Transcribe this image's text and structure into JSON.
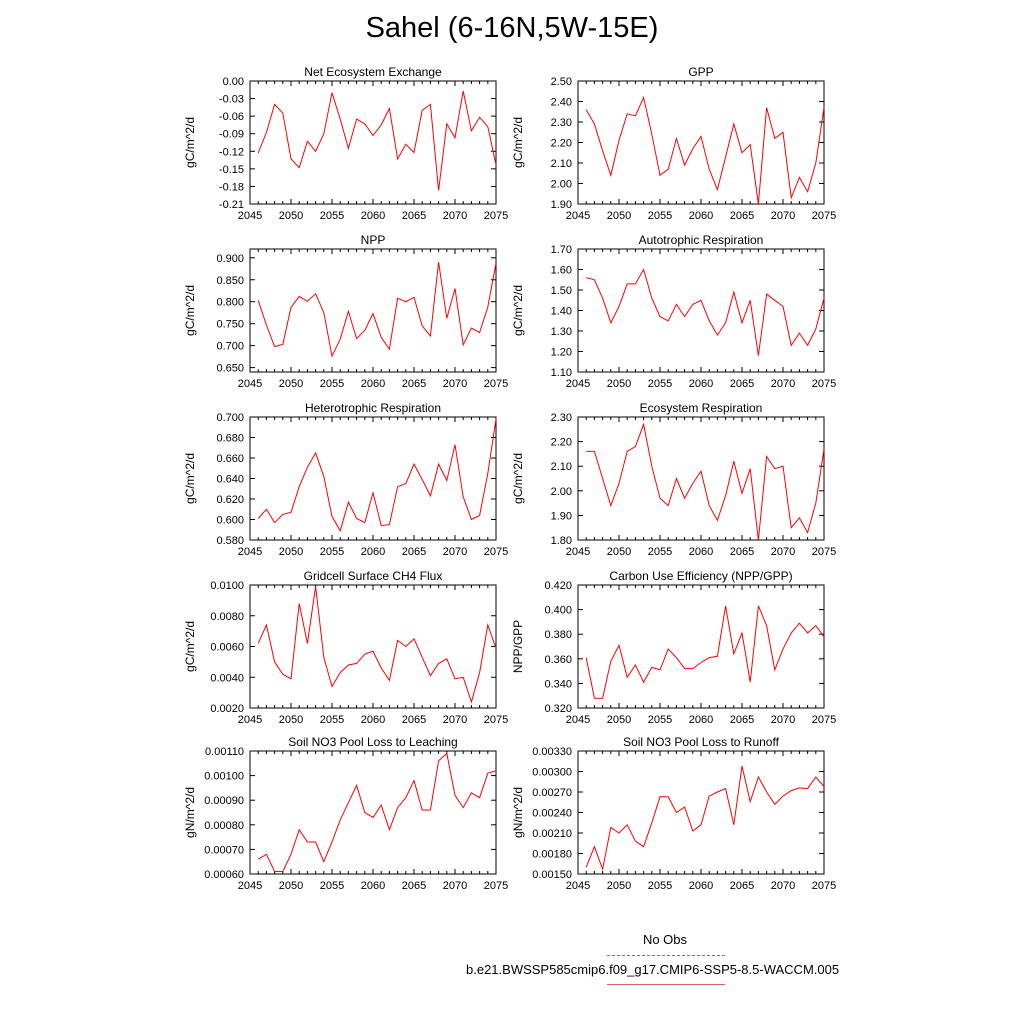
{
  "figure": {
    "title": "Sahel (6-16N,5W-15E)",
    "legend": {
      "obs_label": "No Obs",
      "model_label": "b.e21.BWSSP585cmip6.f09_g17.CMIP6-SSP5-8.5-WACCM.005",
      "obs_color": "#6a6ad0",
      "model_color": "#e06060"
    }
  },
  "chart_data": [
    {
      "type": "line",
      "title": "Net Ecosystem Exchange",
      "ylabel": "gC/m^2/d",
      "xlim": [
        2045,
        2075
      ],
      "ylim": [
        -0.21,
        0.0
      ],
      "xticks": [
        "2045",
        "2050",
        "2055",
        "2060",
        "2065",
        "2070",
        "2075"
      ],
      "yticks": [
        "-0.21",
        "-0.18",
        "-0.15",
        "-0.12",
        "-0.09",
        "-0.06",
        "-0.03",
        "0.00"
      ],
      "x": [
        2046,
        2047,
        2048,
        2049,
        2050,
        2051,
        2052,
        2053,
        2054,
        2055,
        2056,
        2057,
        2058,
        2059,
        2060,
        2061,
        2062,
        2063,
        2064,
        2065,
        2066,
        2067,
        2068,
        2069,
        2070,
        2071,
        2072,
        2073,
        2074,
        2075
      ],
      "series": [
        {
          "name": "b.e21.BWSSP585cmip6.f09_g17.CMIP6-SSP5-8.5-WACCM.005",
          "color": "#ff0000",
          "values": [
            -0.123,
            -0.088,
            -0.04,
            -0.055,
            -0.133,
            -0.148,
            -0.103,
            -0.12,
            -0.09,
            -0.02,
            -0.065,
            -0.115,
            -0.065,
            -0.073,
            -0.093,
            -0.075,
            -0.047,
            -0.133,
            -0.108,
            -0.122,
            -0.05,
            -0.04,
            -0.187,
            -0.073,
            -0.097,
            -0.017,
            -0.085,
            -0.062,
            -0.078,
            -0.143
          ]
        }
      ]
    },
    {
      "type": "line",
      "title": "GPP",
      "ylabel": "gC/m^2/d",
      "xlim": [
        2045,
        2075
      ],
      "ylim": [
        1.9,
        2.5
      ],
      "xticks": [
        "2045",
        "2050",
        "2055",
        "2060",
        "2065",
        "2070",
        "2075"
      ],
      "yticks": [
        "1.90",
        "2.00",
        "2.10",
        "2.20",
        "2.30",
        "2.40",
        "2.50"
      ],
      "x": [
        2046,
        2047,
        2048,
        2049,
        2050,
        2051,
        2052,
        2053,
        2054,
        2055,
        2056,
        2057,
        2058,
        2059,
        2060,
        2061,
        2062,
        2063,
        2064,
        2065,
        2066,
        2067,
        2068,
        2069,
        2070,
        2071,
        2072,
        2073,
        2074,
        2075
      ],
      "series": [
        {
          "name": "b.e21.BWSSP585cmip6.f09_g17.CMIP6-SSP5-8.5-WACCM.005",
          "color": "#ff0000",
          "values": [
            2.36,
            2.29,
            2.16,
            2.04,
            2.21,
            2.34,
            2.33,
            2.42,
            2.24,
            2.04,
            2.07,
            2.22,
            2.09,
            2.17,
            2.23,
            2.07,
            1.97,
            2.13,
            2.29,
            2.15,
            2.19,
            1.9,
            2.37,
            2.22,
            2.25,
            1.93,
            2.03,
            1.96,
            2.1,
            2.37
          ]
        }
      ]
    },
    {
      "type": "line",
      "title": "NPP",
      "ylabel": "gC/m^2/d",
      "xlim": [
        2045,
        2075
      ],
      "ylim": [
        0.64,
        0.92
      ],
      "xticks": [
        "2045",
        "2050",
        "2055",
        "2060",
        "2065",
        "2070",
        "2075"
      ],
      "yticks": [
        "0.650",
        "0.700",
        "0.750",
        "0.800",
        "0.850",
        "0.900"
      ],
      "x": [
        2046,
        2047,
        2048,
        2049,
        2050,
        2051,
        2052,
        2053,
        2054,
        2055,
        2056,
        2057,
        2058,
        2059,
        2060,
        2061,
        2062,
        2063,
        2064,
        2065,
        2066,
        2067,
        2068,
        2069,
        2070,
        2071,
        2072,
        2073,
        2074,
        2075
      ],
      "series": [
        {
          "name": "b.e21.BWSSP585cmip6.f09_g17.CMIP6-SSP5-8.5-WACCM.005",
          "color": "#ff0000",
          "values": [
            0.803,
            0.747,
            0.698,
            0.703,
            0.787,
            0.812,
            0.801,
            0.818,
            0.775,
            0.676,
            0.715,
            0.778,
            0.716,
            0.735,
            0.773,
            0.719,
            0.692,
            0.808,
            0.8,
            0.81,
            0.745,
            0.722,
            0.89,
            0.762,
            0.83,
            0.702,
            0.74,
            0.73,
            0.788,
            0.888
          ]
        }
      ]
    },
    {
      "type": "line",
      "title": "Autotrophic Respiration",
      "ylabel": "gC/m^2/d",
      "xlim": [
        2045,
        2075
      ],
      "ylim": [
        1.1,
        1.7
      ],
      "xticks": [
        "2045",
        "2050",
        "2055",
        "2060",
        "2065",
        "2070",
        "2075"
      ],
      "yticks": [
        "1.10",
        "1.20",
        "1.30",
        "1.40",
        "1.50",
        "1.60",
        "1.70"
      ],
      "x": [
        2046,
        2047,
        2048,
        2049,
        2050,
        2051,
        2052,
        2053,
        2054,
        2055,
        2056,
        2057,
        2058,
        2059,
        2060,
        2061,
        2062,
        2063,
        2064,
        2065,
        2066,
        2067,
        2068,
        2069,
        2070,
        2071,
        2072,
        2073,
        2074,
        2075
      ],
      "series": [
        {
          "name": "b.e21.BWSSP585cmip6.f09_g17.CMIP6-SSP5-8.5-WACCM.005",
          "color": "#ff0000",
          "values": [
            1.56,
            1.55,
            1.46,
            1.34,
            1.42,
            1.53,
            1.53,
            1.6,
            1.46,
            1.37,
            1.35,
            1.43,
            1.37,
            1.43,
            1.45,
            1.35,
            1.28,
            1.34,
            1.49,
            1.34,
            1.45,
            1.18,
            1.48,
            1.45,
            1.42,
            1.23,
            1.29,
            1.23,
            1.31,
            1.46
          ]
        }
      ]
    },
    {
      "type": "line",
      "title": "Heterotrophic Respiration",
      "ylabel": "gC/m^2/d",
      "xlim": [
        2045,
        2075
      ],
      "ylim": [
        0.58,
        0.7
      ],
      "xticks": [
        "2045",
        "2050",
        "2055",
        "2060",
        "2065",
        "2070",
        "2075"
      ],
      "yticks": [
        "0.580",
        "0.600",
        "0.620",
        "0.640",
        "0.660",
        "0.680",
        "0.700"
      ],
      "x": [
        2046,
        2047,
        2048,
        2049,
        2050,
        2051,
        2052,
        2053,
        2054,
        2055,
        2056,
        2057,
        2058,
        2059,
        2060,
        2061,
        2062,
        2063,
        2064,
        2065,
        2066,
        2067,
        2068,
        2069,
        2070,
        2071,
        2072,
        2073,
        2074,
        2075
      ],
      "series": [
        {
          "name": "b.e21.BWSSP585cmip6.f09_g17.CMIP6-SSP5-8.5-WACCM.005",
          "color": "#ff0000",
          "values": [
            0.601,
            0.61,
            0.597,
            0.605,
            0.607,
            0.632,
            0.651,
            0.665,
            0.642,
            0.603,
            0.589,
            0.617,
            0.601,
            0.597,
            0.626,
            0.594,
            0.595,
            0.632,
            0.635,
            0.654,
            0.639,
            0.623,
            0.654,
            0.638,
            0.673,
            0.622,
            0.6,
            0.604,
            0.645,
            0.698
          ]
        }
      ]
    },
    {
      "type": "line",
      "title": "Ecosystem Respiration",
      "ylabel": "gC/m^2/d",
      "xlim": [
        2045,
        2075
      ],
      "ylim": [
        1.8,
        2.3
      ],
      "xticks": [
        "2045",
        "2050",
        "2055",
        "2060",
        "2065",
        "2070",
        "2075"
      ],
      "yticks": [
        "1.80",
        "1.90",
        "2.00",
        "2.10",
        "2.20",
        "2.30"
      ],
      "x": [
        2046,
        2047,
        2048,
        2049,
        2050,
        2051,
        2052,
        2053,
        2054,
        2055,
        2056,
        2057,
        2058,
        2059,
        2060,
        2061,
        2062,
        2063,
        2064,
        2065,
        2066,
        2067,
        2068,
        2069,
        2070,
        2071,
        2072,
        2073,
        2074,
        2075
      ],
      "series": [
        {
          "name": "b.e21.BWSSP585cmip6.f09_g17.CMIP6-SSP5-8.5-WACCM.005",
          "color": "#ff0000",
          "values": [
            2.16,
            2.16,
            2.05,
            1.94,
            2.03,
            2.16,
            2.18,
            2.27,
            2.1,
            1.97,
            1.94,
            2.05,
            1.97,
            2.03,
            2.08,
            1.94,
            1.88,
            1.98,
            2.12,
            1.99,
            2.09,
            1.8,
            2.14,
            2.09,
            2.1,
            1.85,
            1.89,
            1.83,
            1.95,
            2.17
          ]
        }
      ]
    },
    {
      "type": "line",
      "title": "Gridcell Surface CH4 Flux",
      "ylabel": "gC/m^2/d",
      "xlim": [
        2045,
        2075
      ],
      "ylim": [
        0.002,
        0.01
      ],
      "xticks": [
        "2045",
        "2050",
        "2055",
        "2060",
        "2065",
        "2070",
        "2075"
      ],
      "yticks": [
        "0.0020",
        "0.0040",
        "0.0060",
        "0.0080",
        "0.0100"
      ],
      "x": [
        2046,
        2047,
        2048,
        2049,
        2050,
        2051,
        2052,
        2053,
        2054,
        2055,
        2056,
        2057,
        2058,
        2059,
        2060,
        2061,
        2062,
        2063,
        2064,
        2065,
        2066,
        2067,
        2068,
        2069,
        2070,
        2071,
        2072,
        2073,
        2074,
        2075
      ],
      "series": [
        {
          "name": "b.e21.BWSSP585cmip6.f09_g17.CMIP6-SSP5-8.5-WACCM.005",
          "color": "#ff0000",
          "values": [
            0.0062,
            0.0074,
            0.005,
            0.0042,
            0.0039,
            0.0088,
            0.0062,
            0.0099,
            0.0053,
            0.0034,
            0.0043,
            0.0048,
            0.0049,
            0.0055,
            0.0057,
            0.0046,
            0.0038,
            0.0064,
            0.006,
            0.0065,
            0.0053,
            0.0041,
            0.0049,
            0.0052,
            0.0039,
            0.004,
            0.0024,
            0.0043,
            0.0074,
            0.0059
          ]
        }
      ]
    },
    {
      "type": "line",
      "title": "Carbon Use Efficiency (NPP/GPP)",
      "ylabel": "NPP/GPP",
      "xlim": [
        2045,
        2075
      ],
      "ylim": [
        0.32,
        0.42
      ],
      "xticks": [
        "2045",
        "2050",
        "2055",
        "2060",
        "2065",
        "2070",
        "2075"
      ],
      "yticks": [
        "0.320",
        "0.340",
        "0.360",
        "0.380",
        "0.400",
        "0.420"
      ],
      "x": [
        2046,
        2047,
        2048,
        2049,
        2050,
        2051,
        2052,
        2053,
        2054,
        2055,
        2056,
        2057,
        2058,
        2059,
        2060,
        2061,
        2062,
        2063,
        2064,
        2065,
        2066,
        2067,
        2068,
        2069,
        2070,
        2071,
        2072,
        2073,
        2074,
        2075
      ],
      "series": [
        {
          "name": "b.e21.BWSSP585cmip6.f09_g17.CMIP6-SSP5-8.5-WACCM.005",
          "color": "#ff0000",
          "values": [
            0.361,
            0.328,
            0.328,
            0.358,
            0.371,
            0.345,
            0.355,
            0.341,
            0.353,
            0.351,
            0.368,
            0.361,
            0.352,
            0.352,
            0.357,
            0.361,
            0.362,
            0.403,
            0.364,
            0.381,
            0.341,
            0.403,
            0.387,
            0.351,
            0.368,
            0.381,
            0.389,
            0.381,
            0.387,
            0.378
          ]
        }
      ]
    },
    {
      "type": "line",
      "title": "Soil NO3 Pool Loss to Leaching",
      "ylabel": "gN/m^2/d",
      "xlim": [
        2045,
        2075
      ],
      "ylim": [
        0.0006,
        0.0011
      ],
      "xticks": [
        "2045",
        "2050",
        "2055",
        "2060",
        "2065",
        "2070",
        "2075"
      ],
      "yticks": [
        "0.00060",
        "0.00070",
        "0.00080",
        "0.00090",
        "0.00100",
        "0.00110"
      ],
      "x": [
        2046,
        2047,
        2048,
        2049,
        2050,
        2051,
        2052,
        2053,
        2054,
        2055,
        2056,
        2057,
        2058,
        2059,
        2060,
        2061,
        2062,
        2063,
        2064,
        2065,
        2066,
        2067,
        2068,
        2069,
        2070,
        2071,
        2072,
        2073,
        2074,
        2075
      ],
      "series": [
        {
          "name": "b.e21.BWSSP585cmip6.f09_g17.CMIP6-SSP5-8.5-WACCM.005",
          "color": "#ff0000",
          "values": [
            0.00066,
            0.00068,
            0.00061,
            0.00061,
            0.00068,
            0.00078,
            0.00073,
            0.00073,
            0.00065,
            0.00073,
            0.00082,
            0.00089,
            0.00096,
            0.00085,
            0.00083,
            0.00088,
            0.00078,
            0.00087,
            0.00091,
            0.00098,
            0.00086,
            0.00086,
            0.00106,
            0.00109,
            0.00092,
            0.00087,
            0.00093,
            0.00091,
            0.00101,
            0.00102
          ]
        }
      ]
    },
    {
      "type": "line",
      "title": "Soil NO3 Pool Loss to Runoff",
      "ylabel": "gN/m^2/d",
      "xlim": [
        2045,
        2075
      ],
      "ylim": [
        0.0015,
        0.0033
      ],
      "xticks": [
        "2045",
        "2050",
        "2055",
        "2060",
        "2065",
        "2070",
        "2075"
      ],
      "yticks": [
        "0.00150",
        "0.00180",
        "0.00210",
        "0.00240",
        "0.00270",
        "0.00300",
        "0.00330"
      ],
      "x": [
        2046,
        2047,
        2048,
        2049,
        2050,
        2051,
        2052,
        2053,
        2054,
        2055,
        2056,
        2057,
        2058,
        2059,
        2060,
        2061,
        2062,
        2063,
        2064,
        2065,
        2066,
        2067,
        2068,
        2069,
        2070,
        2071,
        2072,
        2073,
        2074,
        2075
      ],
      "series": [
        {
          "name": "b.e21.BWSSP585cmip6.f09_g17.CMIP6-SSP5-8.5-WACCM.005",
          "color": "#ff0000",
          "values": [
            0.0016,
            0.0019,
            0.00157,
            0.00218,
            0.0021,
            0.00222,
            0.00198,
            0.0019,
            0.00225,
            0.00263,
            0.00263,
            0.0024,
            0.00248,
            0.00213,
            0.00222,
            0.00264,
            0.0027,
            0.00275,
            0.00222,
            0.00308,
            0.00256,
            0.00292,
            0.0027,
            0.00252,
            0.00264,
            0.00272,
            0.00276,
            0.00275,
            0.00292,
            0.00278
          ]
        }
      ]
    }
  ]
}
